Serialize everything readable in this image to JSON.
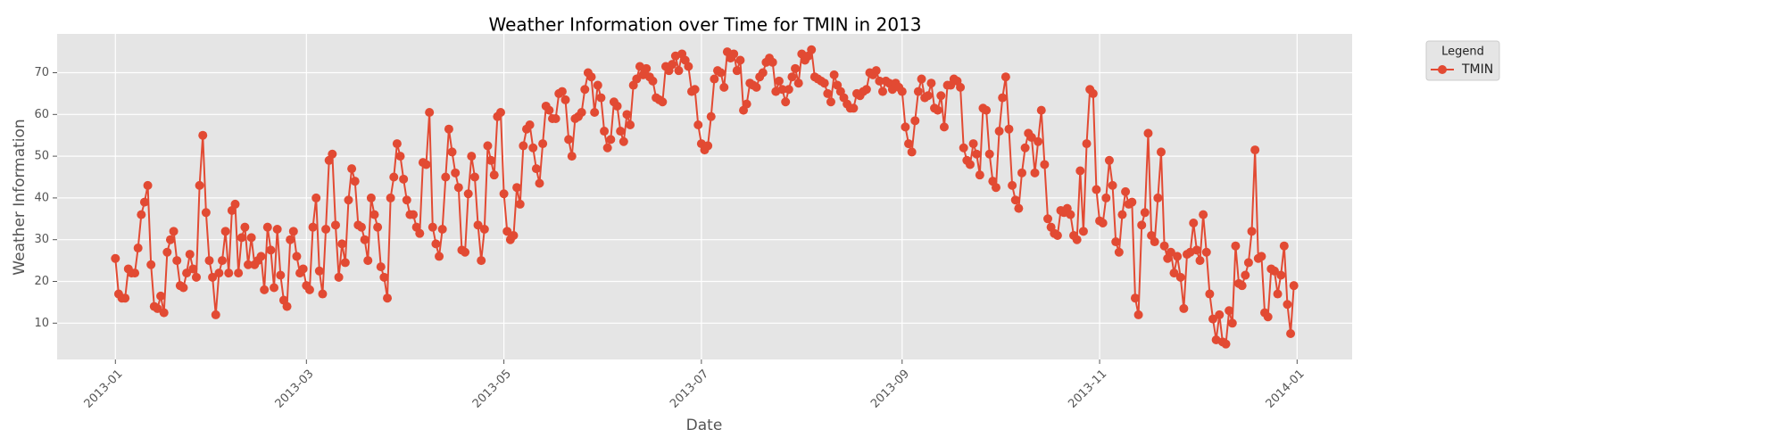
{
  "chart_data": {
    "type": "line",
    "title": "Weather Information over Time for TMIN in 2013",
    "xlabel": "Date",
    "ylabel": "Weather Information",
    "legend_title": "Legend",
    "legend_loc": "outside upper right",
    "grid": true,
    "xlim": [
      "2012-12-14",
      "2014-01-18"
    ],
    "ylim": [
      1.3,
      79.3
    ],
    "yticks": [
      10,
      20,
      30,
      40,
      50,
      60,
      70
    ],
    "xticks": [
      {
        "value": "2013-01-01",
        "label": "2013-01"
      },
      {
        "value": "2013-03-01",
        "label": "2013-03"
      },
      {
        "value": "2013-05-01",
        "label": "2013-05"
      },
      {
        "value": "2013-07-01",
        "label": "2013-07"
      },
      {
        "value": "2013-09-01",
        "label": "2013-09"
      },
      {
        "value": "2013-11-01",
        "label": "2013-11"
      },
      {
        "value": "2014-01-01",
        "label": "2014-01"
      }
    ],
    "x": [
      "2013-01-01",
      "2013-01-02",
      "2013-01-03",
      "2013-01-04",
      "2013-01-05",
      "2013-01-06",
      "2013-01-07",
      "2013-01-08",
      "2013-01-09",
      "2013-01-10",
      "2013-01-11",
      "2013-01-12",
      "2013-01-13",
      "2013-01-14",
      "2013-01-15",
      "2013-01-16",
      "2013-01-17",
      "2013-01-18",
      "2013-01-19",
      "2013-01-20",
      "2013-01-21",
      "2013-01-22",
      "2013-01-23",
      "2013-01-24",
      "2013-01-25",
      "2013-01-26",
      "2013-01-27",
      "2013-01-28",
      "2013-01-29",
      "2013-01-30",
      "2013-01-31",
      "2013-02-01",
      "2013-02-02",
      "2013-02-03",
      "2013-02-04",
      "2013-02-05",
      "2013-02-06",
      "2013-02-07",
      "2013-02-08",
      "2013-02-09",
      "2013-02-10",
      "2013-02-11",
      "2013-02-12",
      "2013-02-13",
      "2013-02-14",
      "2013-02-15",
      "2013-02-16",
      "2013-02-17",
      "2013-02-18",
      "2013-02-19",
      "2013-02-20",
      "2013-02-21",
      "2013-02-22",
      "2013-02-23",
      "2013-02-24",
      "2013-02-25",
      "2013-02-26",
      "2013-02-27",
      "2013-02-28",
      "2013-03-01",
      "2013-03-02",
      "2013-03-03",
      "2013-03-04",
      "2013-03-05",
      "2013-03-06",
      "2013-03-07",
      "2013-03-08",
      "2013-03-09",
      "2013-03-10",
      "2013-03-11",
      "2013-03-12",
      "2013-03-13",
      "2013-03-14",
      "2013-03-15",
      "2013-03-16",
      "2013-03-17",
      "2013-03-18",
      "2013-03-19",
      "2013-03-20",
      "2013-03-21",
      "2013-03-22",
      "2013-03-23",
      "2013-03-24",
      "2013-03-25",
      "2013-03-26",
      "2013-03-27",
      "2013-03-28",
      "2013-03-29",
      "2013-03-30",
      "2013-03-31",
      "2013-04-01",
      "2013-04-02",
      "2013-04-03",
      "2013-04-04",
      "2013-04-05",
      "2013-04-06",
      "2013-04-07",
      "2013-04-08",
      "2013-04-09",
      "2013-04-10",
      "2013-04-11",
      "2013-04-12",
      "2013-04-13",
      "2013-04-14",
      "2013-04-15",
      "2013-04-16",
      "2013-04-17",
      "2013-04-18",
      "2013-04-19",
      "2013-04-20",
      "2013-04-21",
      "2013-04-22",
      "2013-04-23",
      "2013-04-24",
      "2013-04-25",
      "2013-04-26",
      "2013-04-27",
      "2013-04-28",
      "2013-04-29",
      "2013-04-30",
      "2013-05-01",
      "2013-05-02",
      "2013-05-03",
      "2013-05-04",
      "2013-05-05",
      "2013-05-06",
      "2013-05-07",
      "2013-05-08",
      "2013-05-09",
      "2013-05-10",
      "2013-05-11",
      "2013-05-12",
      "2013-05-13",
      "2013-05-14",
      "2013-05-15",
      "2013-05-16",
      "2013-05-17",
      "2013-05-18",
      "2013-05-19",
      "2013-05-20",
      "2013-05-21",
      "2013-05-22",
      "2013-05-23",
      "2013-05-24",
      "2013-05-25",
      "2013-05-26",
      "2013-05-27",
      "2013-05-28",
      "2013-05-29",
      "2013-05-30",
      "2013-05-31",
      "2013-06-01",
      "2013-06-02",
      "2013-06-03",
      "2013-06-04",
      "2013-06-05",
      "2013-06-06",
      "2013-06-07",
      "2013-06-08",
      "2013-06-09",
      "2013-06-10",
      "2013-06-11",
      "2013-06-12",
      "2013-06-13",
      "2013-06-14",
      "2013-06-15",
      "2013-06-16",
      "2013-06-17",
      "2013-06-18",
      "2013-06-19",
      "2013-06-20",
      "2013-06-21",
      "2013-06-22",
      "2013-06-23",
      "2013-06-24",
      "2013-06-25",
      "2013-06-26",
      "2013-06-27",
      "2013-06-28",
      "2013-06-29",
      "2013-06-30",
      "2013-07-01",
      "2013-07-02",
      "2013-07-03",
      "2013-07-04",
      "2013-07-05",
      "2013-07-06",
      "2013-07-07",
      "2013-07-08",
      "2013-07-09",
      "2013-07-10",
      "2013-07-11",
      "2013-07-12",
      "2013-07-13",
      "2013-07-14",
      "2013-07-15",
      "2013-07-16",
      "2013-07-17",
      "2013-07-18",
      "2013-07-19",
      "2013-07-20",
      "2013-07-21",
      "2013-07-22",
      "2013-07-23",
      "2013-07-24",
      "2013-07-25",
      "2013-07-26",
      "2013-07-27",
      "2013-07-28",
      "2013-07-29",
      "2013-07-30",
      "2013-07-31",
      "2013-08-01",
      "2013-08-02",
      "2013-08-03",
      "2013-08-04",
      "2013-08-05",
      "2013-08-06",
      "2013-08-07",
      "2013-08-08",
      "2013-08-09",
      "2013-08-10",
      "2013-08-11",
      "2013-08-12",
      "2013-08-13",
      "2013-08-14",
      "2013-08-15",
      "2013-08-16",
      "2013-08-17",
      "2013-08-18",
      "2013-08-19",
      "2013-08-20",
      "2013-08-21",
      "2013-08-22",
      "2013-08-23",
      "2013-08-24",
      "2013-08-25",
      "2013-08-26",
      "2013-08-27",
      "2013-08-28",
      "2013-08-29",
      "2013-08-30",
      "2013-08-31",
      "2013-09-01",
      "2013-09-02",
      "2013-09-03",
      "2013-09-04",
      "2013-09-05",
      "2013-09-06",
      "2013-09-07",
      "2013-09-08",
      "2013-09-09",
      "2013-09-10",
      "2013-09-11",
      "2013-09-12",
      "2013-09-13",
      "2013-09-14",
      "2013-09-15",
      "2013-09-16",
      "2013-09-17",
      "2013-09-18",
      "2013-09-19",
      "2013-09-20",
      "2013-09-21",
      "2013-09-22",
      "2013-09-23",
      "2013-09-24",
      "2013-09-25",
      "2013-09-26",
      "2013-09-27",
      "2013-09-28",
      "2013-09-29",
      "2013-09-30",
      "2013-10-01",
      "2013-10-02",
      "2013-10-03",
      "2013-10-04",
      "2013-10-05",
      "2013-10-06",
      "2013-10-07",
      "2013-10-08",
      "2013-10-09",
      "2013-10-10",
      "2013-10-11",
      "2013-10-12",
      "2013-10-13",
      "2013-10-14",
      "2013-10-15",
      "2013-10-16",
      "2013-10-17",
      "2013-10-18",
      "2013-10-19",
      "2013-10-20",
      "2013-10-21",
      "2013-10-22",
      "2013-10-23",
      "2013-10-24",
      "2013-10-25",
      "2013-10-26",
      "2013-10-27",
      "2013-10-28",
      "2013-10-29",
      "2013-10-30",
      "2013-10-31",
      "2013-11-01",
      "2013-11-02",
      "2013-11-03",
      "2013-11-04",
      "2013-11-05",
      "2013-11-06",
      "2013-11-07",
      "2013-11-08",
      "2013-11-09",
      "2013-11-10",
      "2013-11-11",
      "2013-11-12",
      "2013-11-13",
      "2013-11-14",
      "2013-11-15",
      "2013-11-16",
      "2013-11-17",
      "2013-11-18",
      "2013-11-19",
      "2013-11-20",
      "2013-11-21",
      "2013-11-22",
      "2013-11-23",
      "2013-11-24",
      "2013-11-25",
      "2013-11-26",
      "2013-11-27",
      "2013-11-28",
      "2013-11-29",
      "2013-11-30",
      "2013-12-01",
      "2013-12-02",
      "2013-12-03",
      "2013-12-04",
      "2013-12-05",
      "2013-12-06",
      "2013-12-07",
      "2013-12-08",
      "2013-12-09",
      "2013-12-10",
      "2013-12-11",
      "2013-12-12",
      "2013-12-13",
      "2013-12-14",
      "2013-12-15",
      "2013-12-16",
      "2013-12-17",
      "2013-12-18",
      "2013-12-19",
      "2013-12-20",
      "2013-12-21",
      "2013-12-22",
      "2013-12-23",
      "2013-12-24",
      "2013-12-25",
      "2013-12-26",
      "2013-12-27",
      "2013-12-28",
      "2013-12-29",
      "2013-12-30",
      "2013-12-31"
    ],
    "series": [
      {
        "name": "TMIN",
        "color": "#e24a33",
        "values": [
          25.5,
          17,
          16,
          16,
          23,
          22,
          22,
          28,
          36,
          39,
          43,
          24,
          14,
          13.5,
          16.5,
          12.5,
          27,
          30,
          32,
          25,
          19,
          18.5,
          22,
          26.5,
          23,
          21,
          43,
          55,
          36.5,
          25,
          21,
          12,
          22,
          25,
          32,
          22,
          37,
          38.5,
          22,
          30.5,
          33,
          24,
          30.5,
          24,
          25,
          26,
          18,
          33,
          27.5,
          18.5,
          32.5,
          21.5,
          15.5,
          14,
          30,
          32,
          26,
          22,
          23,
          19,
          18,
          33,
          40,
          22.5,
          17,
          32.5,
          49,
          50.5,
          33.5,
          21,
          29,
          24.5,
          39.5,
          47,
          44,
          33.5,
          33,
          30,
          25,
          40,
          36,
          33,
          23.5,
          21,
          16,
          40,
          45,
          53,
          50,
          44.5,
          39.5,
          36,
          36,
          33,
          31.5,
          48.5,
          48,
          60.5,
          33,
          29,
          26,
          32.5,
          45,
          56.5,
          51,
          46,
          42.5,
          27.5,
          27,
          41,
          50,
          45,
          33.5,
          25,
          32.5,
          52.5,
          49,
          45.5,
          59.5,
          60.5,
          41,
          32,
          30,
          31,
          42.5,
          38.5,
          52.5,
          56.5,
          57.5,
          52,
          47,
          43.5,
          53,
          62,
          61,
          59,
          59,
          65,
          65.5,
          63.5,
          54,
          50,
          59,
          59.5,
          60.5,
          66,
          70,
          69,
          60.5,
          67,
          64,
          56,
          52,
          54,
          63,
          62,
          56,
          53.5,
          60,
          57.5,
          67,
          68.5,
          71.5,
          69.5,
          71,
          69,
          68,
          64,
          63.5,
          63,
          71.5,
          70.5,
          72,
          74,
          70.5,
          74.5,
          73,
          71.5,
          65.5,
          66,
          57.5,
          53,
          51.5,
          52.5,
          59.5,
          68.5,
          70.5,
          70,
          66.5,
          75,
          73.5,
          74.5,
          70.5,
          73,
          61,
          62.5,
          67.5,
          67,
          66.5,
          69,
          70,
          72.5,
          73.5,
          72.5,
          65.5,
          68,
          66,
          63,
          66,
          69,
          71,
          67.5,
          74.5,
          73,
          74,
          75.5,
          69,
          68.5,
          68,
          67.5,
          65,
          63,
          69.5,
          67,
          65.5,
          64,
          62.5,
          61.5,
          61.5,
          65,
          64.5,
          65.5,
          66,
          70,
          69.5,
          70.5,
          68,
          65.5,
          68,
          67.5,
          66,
          67.5,
          66.5,
          65.5,
          57,
          53,
          51,
          58.5,
          65.5,
          68.5,
          64,
          64.5,
          67.5,
          61.5,
          61,
          64.5,
          57,
          67,
          67,
          68.5,
          68,
          66.5,
          52,
          49,
          48,
          53,
          50.5,
          45.5,
          61.5,
          61,
          50.5,
          44,
          42.5,
          56,
          64,
          69,
          56.5,
          43,
          39.5,
          37.5,
          46,
          52,
          55.5,
          54.5,
          46,
          53.5,
          61,
          48,
          35,
          33,
          31.5,
          31,
          37,
          36.5,
          37.5,
          36,
          31,
          30,
          46.5,
          32,
          53,
          66,
          65,
          42,
          34.5,
          34,
          40,
          49,
          43,
          29.5,
          27,
          36,
          41.5,
          38.5,
          39,
          16,
          12,
          33.5,
          36.5,
          55.5,
          31,
          29.5,
          40,
          51,
          28.5,
          25.5,
          27,
          22,
          26,
          21,
          13.5,
          26.5,
          27,
          34,
          27.5,
          25,
          36,
          27,
          17,
          11,
          6,
          12,
          5.5,
          5,
          13,
          10,
          28.5,
          19.5,
          19,
          21.5,
          24.5,
          32,
          51.5,
          25.5,
          26,
          12.5,
          11.5,
          23,
          22.5,
          17,
          21.5,
          28.5,
          14.5,
          7.5,
          19
        ]
      }
    ]
  }
}
